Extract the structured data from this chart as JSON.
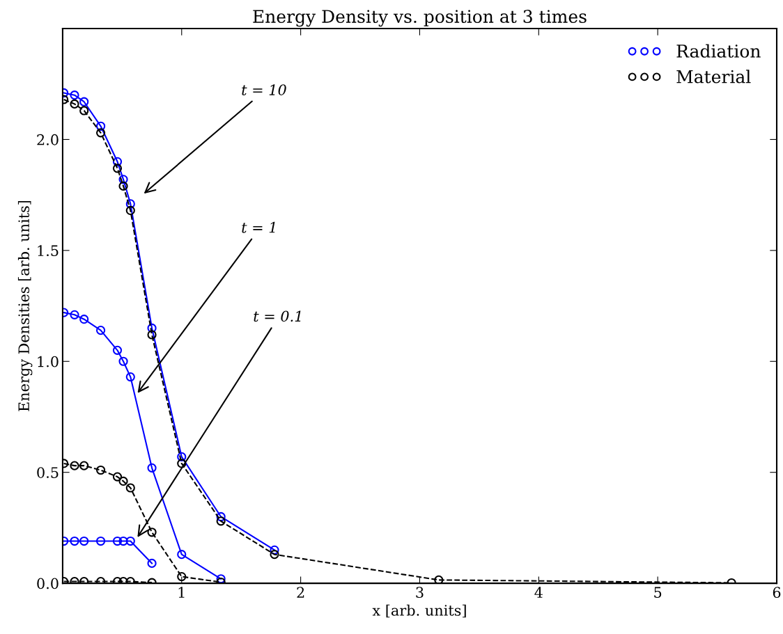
{
  "chart_data": {
    "type": "line",
    "title": "Energy Density vs. position at 3 times",
    "xlabel": "x [arb. units]",
    "ylabel": "Energy Densities [arb. units]",
    "xlim": [
      0,
      6
    ],
    "xticks": [
      1,
      2,
      3,
      4,
      5,
      6
    ],
    "ylim": [
      0,
      2.5
    ],
    "yticks": [
      {
        "value": 0,
        "label": "0.0"
      },
      {
        "value": 0.5,
        "label": "0.5"
      },
      {
        "value": 1,
        "label": "1.0"
      },
      {
        "value": 1.5,
        "label": "1.5"
      },
      {
        "value": 2,
        "label": "2.0"
      }
    ],
    "marker": "circle",
    "grid": false,
    "legend": "top right",
    "series": [
      {
        "name": "Radiation",
        "color": "#0000ff",
        "line_style": "solid",
        "x": [
          0.01,
          0.1,
          0.18,
          0.32,
          0.46,
          0.51,
          0.57,
          0.75,
          1.0,
          1.33,
          1.78
        ],
        "values": [
          2.21,
          2.2,
          2.17,
          2.06,
          1.9,
          1.82,
          1.71,
          1.15,
          0.57,
          0.3,
          0.15
        ]
      },
      {
        "name": "Material",
        "color": "#000000",
        "line_style": "dashed",
        "x": [
          0.01,
          0.1,
          0.18,
          0.32,
          0.46,
          0.51,
          0.57,
          0.75,
          1.0,
          1.33,
          1.78,
          3.16,
          5.62
        ],
        "values": [
          2.18,
          2.16,
          2.13,
          2.03,
          1.87,
          1.79,
          1.68,
          1.12,
          0.54,
          0.28,
          0.13,
          0.015,
          0.002
        ]
      },
      {
        "color": "#0000ff",
        "line_style": "solid",
        "x": [
          0.01,
          0.1,
          0.18,
          0.32,
          0.46,
          0.51,
          0.57,
          0.75,
          1.0,
          1.33
        ],
        "values": [
          1.22,
          1.21,
          1.19,
          1.14,
          1.05,
          1.0,
          0.93,
          0.52,
          0.13,
          0.02
        ]
      },
      {
        "color": "#000000",
        "line_style": "dashed",
        "x": [
          0.01,
          0.1,
          0.18,
          0.32,
          0.46,
          0.51,
          0.57,
          0.75,
          1.0,
          1.33
        ],
        "values": [
          0.54,
          0.53,
          0.53,
          0.51,
          0.48,
          0.46,
          0.43,
          0.23,
          0.03,
          0.005
        ]
      },
      {
        "color": "#0000ff",
        "line_style": "solid",
        "x": [
          0.01,
          0.1,
          0.18,
          0.32,
          0.46,
          0.51,
          0.57,
          0.75
        ],
        "values": [
          0.19,
          0.19,
          0.19,
          0.19,
          0.19,
          0.19,
          0.19,
          0.09
        ]
      },
      {
        "color": "#000000",
        "line_style": "dashed",
        "x": [
          0.01,
          0.1,
          0.18,
          0.32,
          0.46,
          0.51,
          0.57,
          0.75
        ],
        "values": [
          0.008,
          0.008,
          0.008,
          0.008,
          0.008,
          0.008,
          0.008,
          0.003
        ]
      }
    ],
    "annotations": [
      "t = 10",
      "t = 1",
      "t = 0.1"
    ]
  }
}
